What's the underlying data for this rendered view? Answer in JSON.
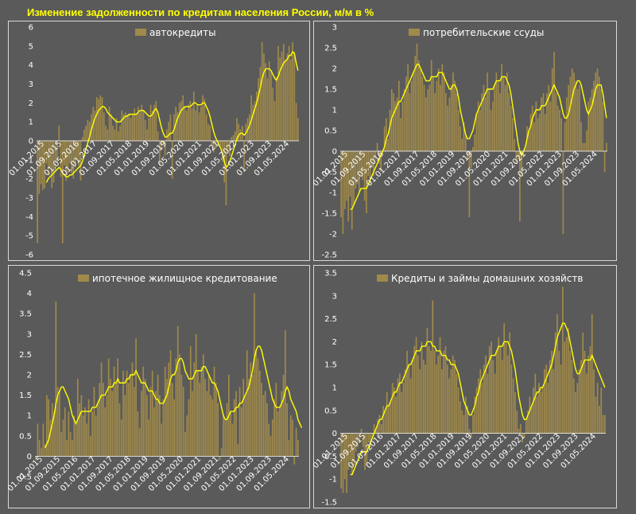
{
  "header": {
    "title": "Изменение задолженности по кредитам населения России, м/м в %"
  },
  "colors": {
    "bar": "#a08a4a",
    "line": "#ffff00",
    "panel_bg": "#5a5a5a",
    "border": "#d9d9d9",
    "zero_line": "#ffffff"
  },
  "chart_data": [
    {
      "type": "bar",
      "legend": "автокредиты",
      "ylim": [
        -6,
        6
      ],
      "y_ticks": [
        "6",
        "5",
        "4",
        "3",
        "2",
        "1",
        "0",
        "-1",
        "-2",
        "-3",
        "-4",
        "-5",
        "-6"
      ],
      "x_tick_labels": [
        "01.01.2015",
        "01.09.2015",
        "01.05.2016",
        "01.01.2017",
        "01.09.2017",
        "01.05.2018",
        "01.01.2019",
        "01.09.2019",
        "01.05.2020",
        "01.01.2021",
        "01.09.2021",
        "01.05.2022",
        "01.01.2023",
        "01.09.2023",
        "01.05.2024"
      ],
      "values": [
        -5.4,
        -2.8,
        -2.3,
        -2.6,
        -2.5,
        -1.2,
        -1.8,
        -1.4,
        -2.5,
        -2.2,
        -1.6,
        -1.1,
        0.8,
        -1.9,
        -5.4,
        -1.3,
        -2.1,
        -1.7,
        -1.2,
        -1.7,
        -2.0,
        -1.4,
        -1.0,
        -1.3,
        -2.1,
        0.2,
        0.6,
        0.8,
        1.1,
        1.0,
        1.4,
        1.8,
        1.6,
        2.3,
        2.2,
        2.4,
        2.3,
        1.5,
        0.8,
        0.6,
        1.8,
        1.4,
        0.8,
        0.6,
        1.2,
        0.5,
        0.8,
        1.6,
        1.4,
        1.5,
        1.4,
        1.4,
        1.2,
        1.4,
        1.7,
        1.4,
        1.8,
        1.5,
        1.9,
        1.6,
        1.1,
        0.6,
        1.2,
        1.9,
        1.6,
        1.9,
        2.1,
        0.5,
        -1.3,
        -0.5,
        -0.2,
        -0.8,
        0.6,
        1.0,
        1.4,
        -2.0,
        1.4,
        1.8,
        1.5,
        2.0,
        2.1,
        2.4,
        1.8,
        1.6,
        1.9,
        2.1,
        1.7,
        2.6,
        1.6,
        1.9,
        1.5,
        1.8,
        2.4,
        2.2,
        1.4,
        0.9,
        0.8,
        -0.2,
        -0.6,
        -0.4,
        -0.1,
        -0.3,
        -0.3,
        -1.1,
        -2.2,
        -3.4,
        -0.6,
        -0.8,
        0.2,
        0.3,
        0.5,
        1.2,
        0.9,
        0.6,
        0.8,
        -1.6,
        0.9,
        1.2,
        1.4,
        2.4,
        1.9,
        2.1,
        2.6,
        3.3,
        3.9,
        5.2,
        4.6,
        4.1,
        3.3,
        4.2,
        3.6,
        2.8,
        2.1,
        3.4,
        5.0,
        4.4,
        4.7,
        5.1,
        4.3,
        4.6,
        5.0,
        4.3,
        5.2,
        4.7,
        2.0,
        1.2
      ],
      "line": [
        null,
        null,
        null,
        null,
        null,
        -2.2,
        -2.0,
        -1.9,
        -1.8,
        -1.7,
        -1.6,
        -1.5,
        -1.4,
        -1.5,
        -1.7,
        -1.8,
        -1.9,
        -1.9,
        -1.8,
        -1.8,
        -1.7,
        -1.6,
        -1.5,
        -1.4,
        -1.3,
        -1.1,
        -0.8,
        -0.4,
        -0.1,
        0.2,
        0.6,
        0.9,
        1.2,
        1.4,
        1.6,
        1.7,
        1.8,
        1.8,
        1.7,
        1.5,
        1.4,
        1.3,
        1.2,
        1.1,
        1.0,
        1.0,
        1.0,
        1.1,
        1.2,
        1.3,
        1.3,
        1.4,
        1.4,
        1.4,
        1.4,
        1.4,
        1.5,
        1.6,
        1.6,
        1.6,
        1.5,
        1.4,
        1.3,
        1.3,
        1.4,
        1.6,
        1.7,
        1.5,
        1.1,
        0.7,
        0.4,
        0.2,
        0.2,
        0.3,
        0.4,
        0.4,
        0.6,
        0.9,
        1.2,
        1.4,
        1.6,
        1.7,
        1.8,
        1.8,
        1.8,
        1.8,
        1.9,
        2.0,
        2.0,
        1.9,
        1.9,
        1.9,
        2.0,
        2.0,
        1.8,
        1.6,
        1.3,
        0.9,
        0.5,
        0.2,
        0.0,
        -0.2,
        -0.4,
        -0.7,
        -1.1,
        -1.4,
        -1.3,
        -1.1,
        -0.8,
        -0.5,
        -0.2,
        0.1,
        0.3,
        0.4,
        0.4,
        0.3,
        0.4,
        0.6,
        0.8,
        1.1,
        1.4,
        1.7,
        2.0,
        2.4,
        2.8,
        3.3,
        3.6,
        3.8,
        3.8,
        3.8,
        3.7,
        3.5,
        3.3,
        3.2,
        3.4,
        3.7,
        3.9,
        4.1,
        4.2,
        4.3,
        4.5,
        4.5,
        4.7,
        4.6,
        4.1,
        3.7
      ]
    },
    {
      "type": "bar",
      "legend": "потребительские ссуды",
      "ylim": [
        -2.5,
        3
      ],
      "y_ticks": [
        "3",
        "2.5",
        "2",
        "1.5",
        "1",
        "0.5",
        "0",
        "-0.5",
        "-1",
        "-1.5",
        "-2",
        "-2.5"
      ],
      "x_tick_labels": [
        "01.01.2015",
        "01.09.2015",
        "01.05.2016",
        "01.01.2017",
        "01.09.2017",
        "01.05.2018",
        "01.01.2019",
        "01.09.2019",
        "01.05.2020",
        "01.01.2021",
        "01.09.2021",
        "01.05.2022",
        "01.01.2023",
        "01.09.2023",
        "01.05.2024"
      ],
      "values": [
        -1.6,
        -2.0,
        -1.4,
        -1.2,
        -1.7,
        -1.1,
        -1.9,
        -1.3,
        -0.9,
        -0.8,
        -1.0,
        -0.6,
        -0.7,
        -1.2,
        -1.5,
        -0.6,
        -0.8,
        -0.4,
        -0.6,
        -0.2,
        0.2,
        -0.3,
        -0.5,
        -0.1,
        0.6,
        0.8,
        0.3,
        1.0,
        1.5,
        1.4,
        1.2,
        1.3,
        1.7,
        0.8,
        1.2,
        1.5,
        1.8,
        2.1,
        1.4,
        1.7,
        1.9,
        2.3,
        2.6,
        2.2,
        2.0,
        1.8,
        1.6,
        1.3,
        1.5,
        1.6,
        2.2,
        1.8,
        1.4,
        1.7,
        2.0,
        1.6,
        2.1,
        1.9,
        1.4,
        1.1,
        1.3,
        1.6,
        1.9,
        1.7,
        1.4,
        1.0,
        0.6,
        0.3,
        0.7,
        0.4,
        -0.2,
        -1.6,
        -0.4,
        0.1,
        0.4,
        0.9,
        1.2,
        1.0,
        1.4,
        1.6,
        1.3,
        1.9,
        1.5,
        1.0,
        1.2,
        1.6,
        1.9,
        1.7,
        1.4,
        2.1,
        1.8,
        1.6,
        1.9,
        1.4,
        1.1,
        0.8,
        0.3,
        -0.3,
        -0.2,
        -1.7,
        -0.6,
        -0.1,
        0.1,
        0.6,
        0.5,
        0.9,
        1.1,
        0.7,
        1.2,
        0.8,
        0.9,
        1.3,
        1.4,
        0.9,
        1.4,
        1.6,
        1.2,
        2.0,
        2.4,
        1.4,
        1.1,
        1.0,
        0.8,
        -2.0,
        0.7,
        1.3,
        1.6,
        1.8,
        2.0,
        1.9,
        1.7,
        1.5,
        1.6,
        0.7,
        0.2,
        0.2,
        0.5,
        1.2,
        1.3,
        1.5,
        1.7,
        1.9,
        2.0,
        1.8,
        1.5,
        1.2,
        -0.5,
        0.2
      ],
      "line": [
        null,
        null,
        null,
        null,
        null,
        -1.4,
        -1.4,
        -1.3,
        -1.2,
        -1.1,
        -1.0,
        -0.9,
        -0.9,
        -0.9,
        -0.9,
        -0.8,
        -0.7,
        -0.6,
        -0.5,
        -0.4,
        -0.3,
        -0.2,
        -0.1,
        0.0,
        0.1,
        0.3,
        0.4,
        0.6,
        0.8,
        0.9,
        1.0,
        1.1,
        1.2,
        1.2,
        1.3,
        1.4,
        1.5,
        1.6,
        1.7,
        1.8,
        1.9,
        2.0,
        2.1,
        2.1,
        2.0,
        1.9,
        1.8,
        1.7,
        1.7,
        1.7,
        1.8,
        1.8,
        1.8,
        1.8,
        1.9,
        1.9,
        1.9,
        1.8,
        1.7,
        1.6,
        1.5,
        1.5,
        1.6,
        1.6,
        1.5,
        1.3,
        1.0,
        0.8,
        0.6,
        0.4,
        0.3,
        0.3,
        0.4,
        0.5,
        0.7,
        0.9,
        1.0,
        1.1,
        1.2,
        1.3,
        1.4,
        1.5,
        1.5,
        1.5,
        1.5,
        1.6,
        1.7,
        1.7,
        1.7,
        1.8,
        1.8,
        1.8,
        1.7,
        1.6,
        1.4,
        1.1,
        0.8,
        0.5,
        0.2,
        0.0,
        -0.1,
        0.0,
        0.1,
        0.3,
        0.5,
        0.6,
        0.8,
        0.9,
        1.0,
        1.0,
        1.0,
        1.1,
        1.1,
        1.1,
        1.2,
        1.3,
        1.4,
        1.5,
        1.6,
        1.5,
        1.4,
        1.3,
        1.1,
        0.9,
        0.8,
        0.8,
        0.9,
        1.1,
        1.3,
        1.5,
        1.6,
        1.7,
        1.7,
        1.6,
        1.4,
        1.2,
        1.0,
        0.9,
        1.0,
        1.1,
        1.3,
        1.5,
        1.6,
        1.6,
        1.6,
        1.4,
        1.1,
        0.8
      ]
    },
    {
      "type": "bar",
      "legend": "ипотечное жилищное кредитование",
      "ylim": [
        -0.5,
        4.5
      ],
      "y_ticks": [
        "4.5",
        "4",
        "3.5",
        "3",
        "2.5",
        "2",
        "1.5",
        "1",
        "0.5",
        "0",
        "-0.5"
      ],
      "x_tick_labels": [
        "01.01.2015",
        "01.09.2015",
        "01.05.2016",
        "01.01.2017",
        "01.09.2017",
        "01.05.2018",
        "01.01.2019",
        "01.09.2019",
        "01.05.2020",
        "01.01.2021",
        "01.09.2021",
        "01.05.2022",
        "01.01.2023",
        "01.09.2023",
        "01.05.2024"
      ],
      "values": [
        -0.1,
        0.8,
        0.4,
        0.2,
        0.8,
        0.3,
        1.5,
        1.4,
        0.9,
        1.3,
        1.1,
        3.8,
        1.7,
        1.6,
        0.6,
        0.9,
        1.2,
        0.4,
        1.1,
        0.6,
        0.4,
        1.0,
        0.8,
        1.9,
        1.3,
        1.5,
        1.0,
        1.2,
        0.8,
        1.4,
        0.5,
        1.1,
        1.7,
        1.0,
        1.3,
        1.8,
        2.3,
        1.8,
        1.2,
        1.5,
        2.4,
        1.9,
        1.6,
        2.2,
        1.8,
        2.4,
        1.3,
        0.9,
        2.1,
        1.5,
        2.1,
        1.8,
        2.0,
        2.3,
        1.7,
        2.9,
        1.1,
        0.7,
        1.6,
        2.2,
        1.9,
        1.5,
        0.9,
        1.7,
        2.1,
        1.2,
        1.6,
        2.0,
        1.5,
        0.8,
        1.4,
        2.2,
        1.9,
        2.3,
        2.6,
        1.8,
        1.4,
        2.4,
        3.2,
        2.5,
        2.0,
        1.7,
        0.6,
        1.0,
        1.4,
        2.7,
        1.6,
        2.3,
        3.0,
        2.1,
        1.8,
        2.2,
        2.5,
        1.9,
        1.6,
        2.0,
        1.5,
        1.4,
        2.2,
        1.8,
        1.3,
        -0.1,
        0.2,
        1.0,
        0.9,
        1.3,
        2.0,
        1.1,
        0.8,
        1.4,
        1.6,
        0.3,
        1.7,
        1.2,
        1.9,
        1.5,
        2.6,
        1.9,
        2.3,
        2.0,
        4.0,
        2.6,
        2.4,
        2.1,
        1.8,
        1.5,
        1.6,
        1.3,
        0.8,
        0.5,
        0.9,
        1.4,
        1.8,
        1.1,
        1.2,
        1.6,
        2.0,
        3.1,
        1.3,
        0.4,
        1.0,
        0.9,
        -0.2,
        0.7,
        0.4
      ],
      "line": [
        null,
        null,
        null,
        null,
        null,
        0.2,
        0.3,
        0.4,
        0.6,
        0.8,
        1.0,
        1.3,
        1.5,
        1.6,
        1.7,
        1.7,
        1.6,
        1.5,
        1.4,
        1.2,
        1.0,
        0.9,
        0.8,
        0.9,
        1.0,
        1.1,
        1.1,
        1.1,
        1.1,
        1.1,
        1.1,
        1.2,
        1.2,
        1.2,
        1.3,
        1.4,
        1.5,
        1.5,
        1.5,
        1.6,
        1.7,
        1.7,
        1.7,
        1.8,
        1.8,
        1.9,
        1.8,
        1.8,
        1.8,
        1.8,
        1.9,
        1.9,
        2.0,
        2.0,
        2.0,
        2.1,
        2.0,
        1.9,
        1.8,
        1.8,
        1.8,
        1.7,
        1.6,
        1.6,
        1.6,
        1.5,
        1.4,
        1.4,
        1.3,
        1.3,
        1.3,
        1.4,
        1.5,
        1.7,
        1.9,
        2.0,
        2.0,
        2.1,
        2.3,
        2.4,
        2.4,
        2.3,
        2.1,
        2.0,
        1.9,
        1.9,
        1.9,
        2.0,
        2.1,
        2.1,
        2.1,
        2.1,
        2.2,
        2.2,
        2.1,
        2.0,
        1.9,
        1.8,
        1.8,
        1.7,
        1.6,
        1.4,
        1.2,
        1.0,
        0.9,
        0.9,
        1.0,
        1.1,
        1.1,
        1.1,
        1.2,
        1.2,
        1.3,
        1.3,
        1.4,
        1.5,
        1.6,
        1.7,
        1.9,
        2.1,
        2.4,
        2.6,
        2.7,
        2.7,
        2.6,
        2.4,
        2.2,
        2.0,
        1.8,
        1.6,
        1.4,
        1.3,
        1.2,
        1.2,
        1.2,
        1.3,
        1.4,
        1.6,
        1.7,
        1.6,
        1.4,
        1.3,
        1.2,
        1.1,
        0.9,
        0.8,
        0.7
      ]
    },
    {
      "type": "bar",
      "legend": "Кредиты и займы домашних хозяйств",
      "ylim": [
        -1.5,
        3.5
      ],
      "y_ticks": [
        "3.5",
        "3",
        "2.5",
        "2",
        "1.5",
        "1",
        "0.5",
        "0",
        "-0.5",
        "-1",
        "-1.5"
      ],
      "x_tick_labels": [
        "01.01.2015",
        "01.09.2015",
        "01.05.2016",
        "01.01.2017",
        "01.09.2017",
        "01.05.2018",
        "01.01.2019",
        "01.09.2019",
        "01.05.2020",
        "01.01.2021",
        "01.09.2021",
        "01.05.2022",
        "01.01.2023",
        "01.09.2023",
        "01.05.2024"
      ],
      "values": [
        -1.2,
        -1.3,
        -1.0,
        -1.3,
        -0.8,
        -0.6,
        -0.9,
        -0.7,
        -0.4,
        -0.3,
        -0.2,
        0.1,
        -0.3,
        -0.8,
        -0.7,
        -0.2,
        -0.3,
        -0.1,
        0.2,
        0.1,
        0.3,
        0.4,
        0.2,
        0.6,
        0.5,
        0.9,
        0.6,
        0.7,
        1.1,
        1.0,
        0.8,
        1.2,
        1.3,
        0.9,
        1.1,
        1.4,
        1.8,
        1.5,
        1.2,
        1.6,
        1.9,
        2.1,
        1.7,
        1.4,
        2.0,
        1.6,
        1.5,
        2.3,
        1.9,
        1.8,
        2.9,
        1.8,
        1.5,
        1.7,
        2.1,
        1.4,
        1.8,
        1.9,
        1.5,
        1.2,
        1.4,
        1.7,
        1.6,
        1.3,
        1.0,
        0.7,
        0.5,
        0.4,
        0.8,
        0.6,
        0.1,
        -0.1,
        0.4,
        0.8,
        1.0,
        1.2,
        1.4,
        1.1,
        1.5,
        1.7,
        1.3,
        1.9,
        2.0,
        1.6,
        1.3,
        1.8,
        2.1,
        1.9,
        1.6,
        2.4,
        2.0,
        1.7,
        2.2,
        1.5,
        1.2,
        0.9,
        0.5,
        0.1,
        0.2,
        -0.2,
        -0.1,
        0.3,
        0.5,
        0.8,
        0.6,
        1.0,
        1.3,
        0.8,
        1.1,
        0.9,
        1.0,
        1.4,
        1.5,
        1.1,
        1.6,
        1.8,
        1.4,
        2.2,
        2.6,
        1.8,
        1.5,
        3.2,
        2.0,
        2.1,
        2.3,
        1.8,
        1.6,
        1.2,
        0.9,
        1.1,
        1.4,
        1.6,
        2.2,
        1.8,
        1.3,
        1.7,
        1.9,
        2.6,
        1.4,
        0.8,
        1.1,
        0.6,
        1.0,
        0.4,
        0.4
      ],
      "line": [
        null,
        null,
        null,
        null,
        null,
        -0.9,
        -0.9,
        -0.8,
        -0.7,
        -0.6,
        -0.5,
        -0.4,
        -0.4,
        -0.4,
        -0.4,
        -0.3,
        -0.2,
        -0.1,
        0.0,
        0.1,
        0.2,
        0.3,
        0.3,
        0.4,
        0.5,
        0.6,
        0.6,
        0.7,
        0.8,
        0.9,
        0.9,
        1.0,
        1.1,
        1.1,
        1.2,
        1.3,
        1.4,
        1.5,
        1.5,
        1.6,
        1.7,
        1.8,
        1.8,
        1.8,
        1.9,
        1.9,
        1.9,
        2.0,
        2.0,
        2.0,
        1.9,
        1.9,
        1.8,
        1.8,
        1.8,
        1.7,
        1.7,
        1.7,
        1.6,
        1.6,
        1.5,
        1.5,
        1.5,
        1.4,
        1.3,
        1.1,
        0.9,
        0.7,
        0.6,
        0.5,
        0.4,
        0.4,
        0.5,
        0.6,
        0.8,
        0.9,
        1.1,
        1.2,
        1.3,
        1.4,
        1.5,
        1.6,
        1.7,
        1.7,
        1.7,
        1.8,
        1.9,
        1.9,
        1.9,
        2.0,
        2.0,
        2.0,
        1.9,
        1.8,
        1.6,
        1.4,
        1.1,
        0.8,
        0.6,
        0.4,
        0.3,
        0.3,
        0.4,
        0.5,
        0.6,
        0.7,
        0.8,
        0.9,
        0.9,
        1.0,
        1.0,
        1.1,
        1.2,
        1.3,
        1.4,
        1.5,
        1.7,
        1.9,
        2.1,
        2.2,
        2.3,
        2.4,
        2.4,
        2.3,
        2.2,
        2.0,
        1.8,
        1.6,
        1.4,
        1.3,
        1.3,
        1.4,
        1.5,
        1.6,
        1.6,
        1.6,
        1.6,
        1.7,
        1.6,
        1.5,
        1.4,
        1.3,
        1.2,
        1.1,
        1.0
      ]
    }
  ]
}
